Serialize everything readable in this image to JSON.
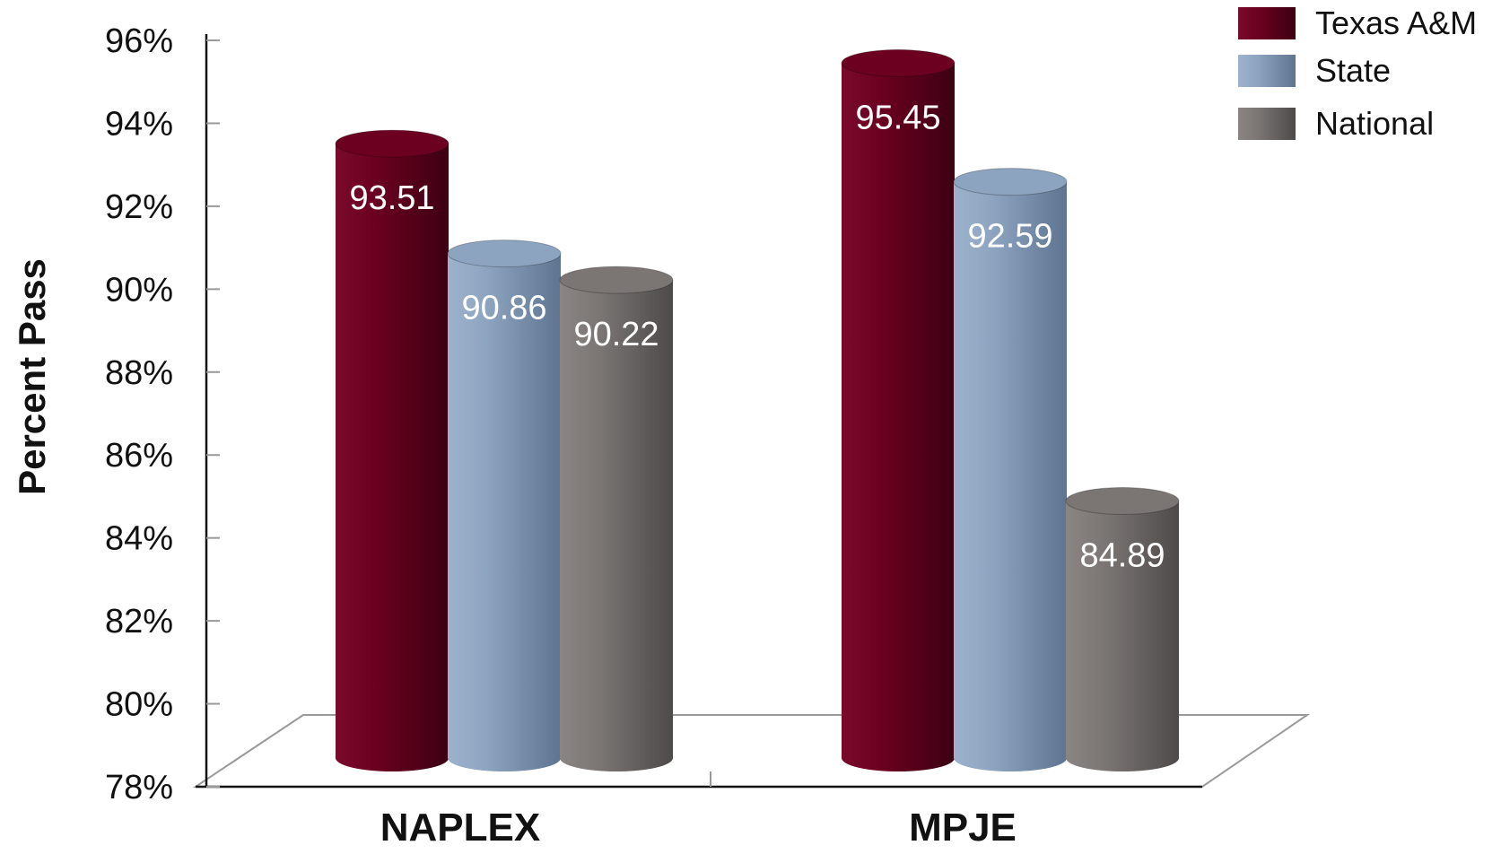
{
  "chart_data": {
    "type": "bar",
    "style": "3d-cylinder",
    "categories": [
      "NAPLEX",
      "MPJE"
    ],
    "series": [
      {
        "name": "Texas A&M",
        "values": [
          93.51,
          95.45
        ],
        "color": "#6b0020"
      },
      {
        "name": "State",
        "values": [
          90.86,
          92.59
        ],
        "color": "#8da4c0"
      },
      {
        "name": "National",
        "values": [
          90.22,
          84.89
        ],
        "color": "#7b7674"
      }
    ],
    "data_labels": [
      [
        "93.51",
        "95.45"
      ],
      [
        "90.86",
        "92.59"
      ],
      [
        "90.22",
        "84.89"
      ]
    ],
    "ylabel": "Percent Pass",
    "ylim": [
      78,
      96
    ],
    "yticks": [
      78,
      80,
      82,
      84,
      86,
      88,
      90,
      92,
      94,
      96
    ],
    "ytick_labels": [
      "78%",
      "80%",
      "82%",
      "84%",
      "86%",
      "88%",
      "90%",
      "92%",
      "94%",
      "96%"
    ],
    "legend_position": "top-right",
    "grid": false
  }
}
